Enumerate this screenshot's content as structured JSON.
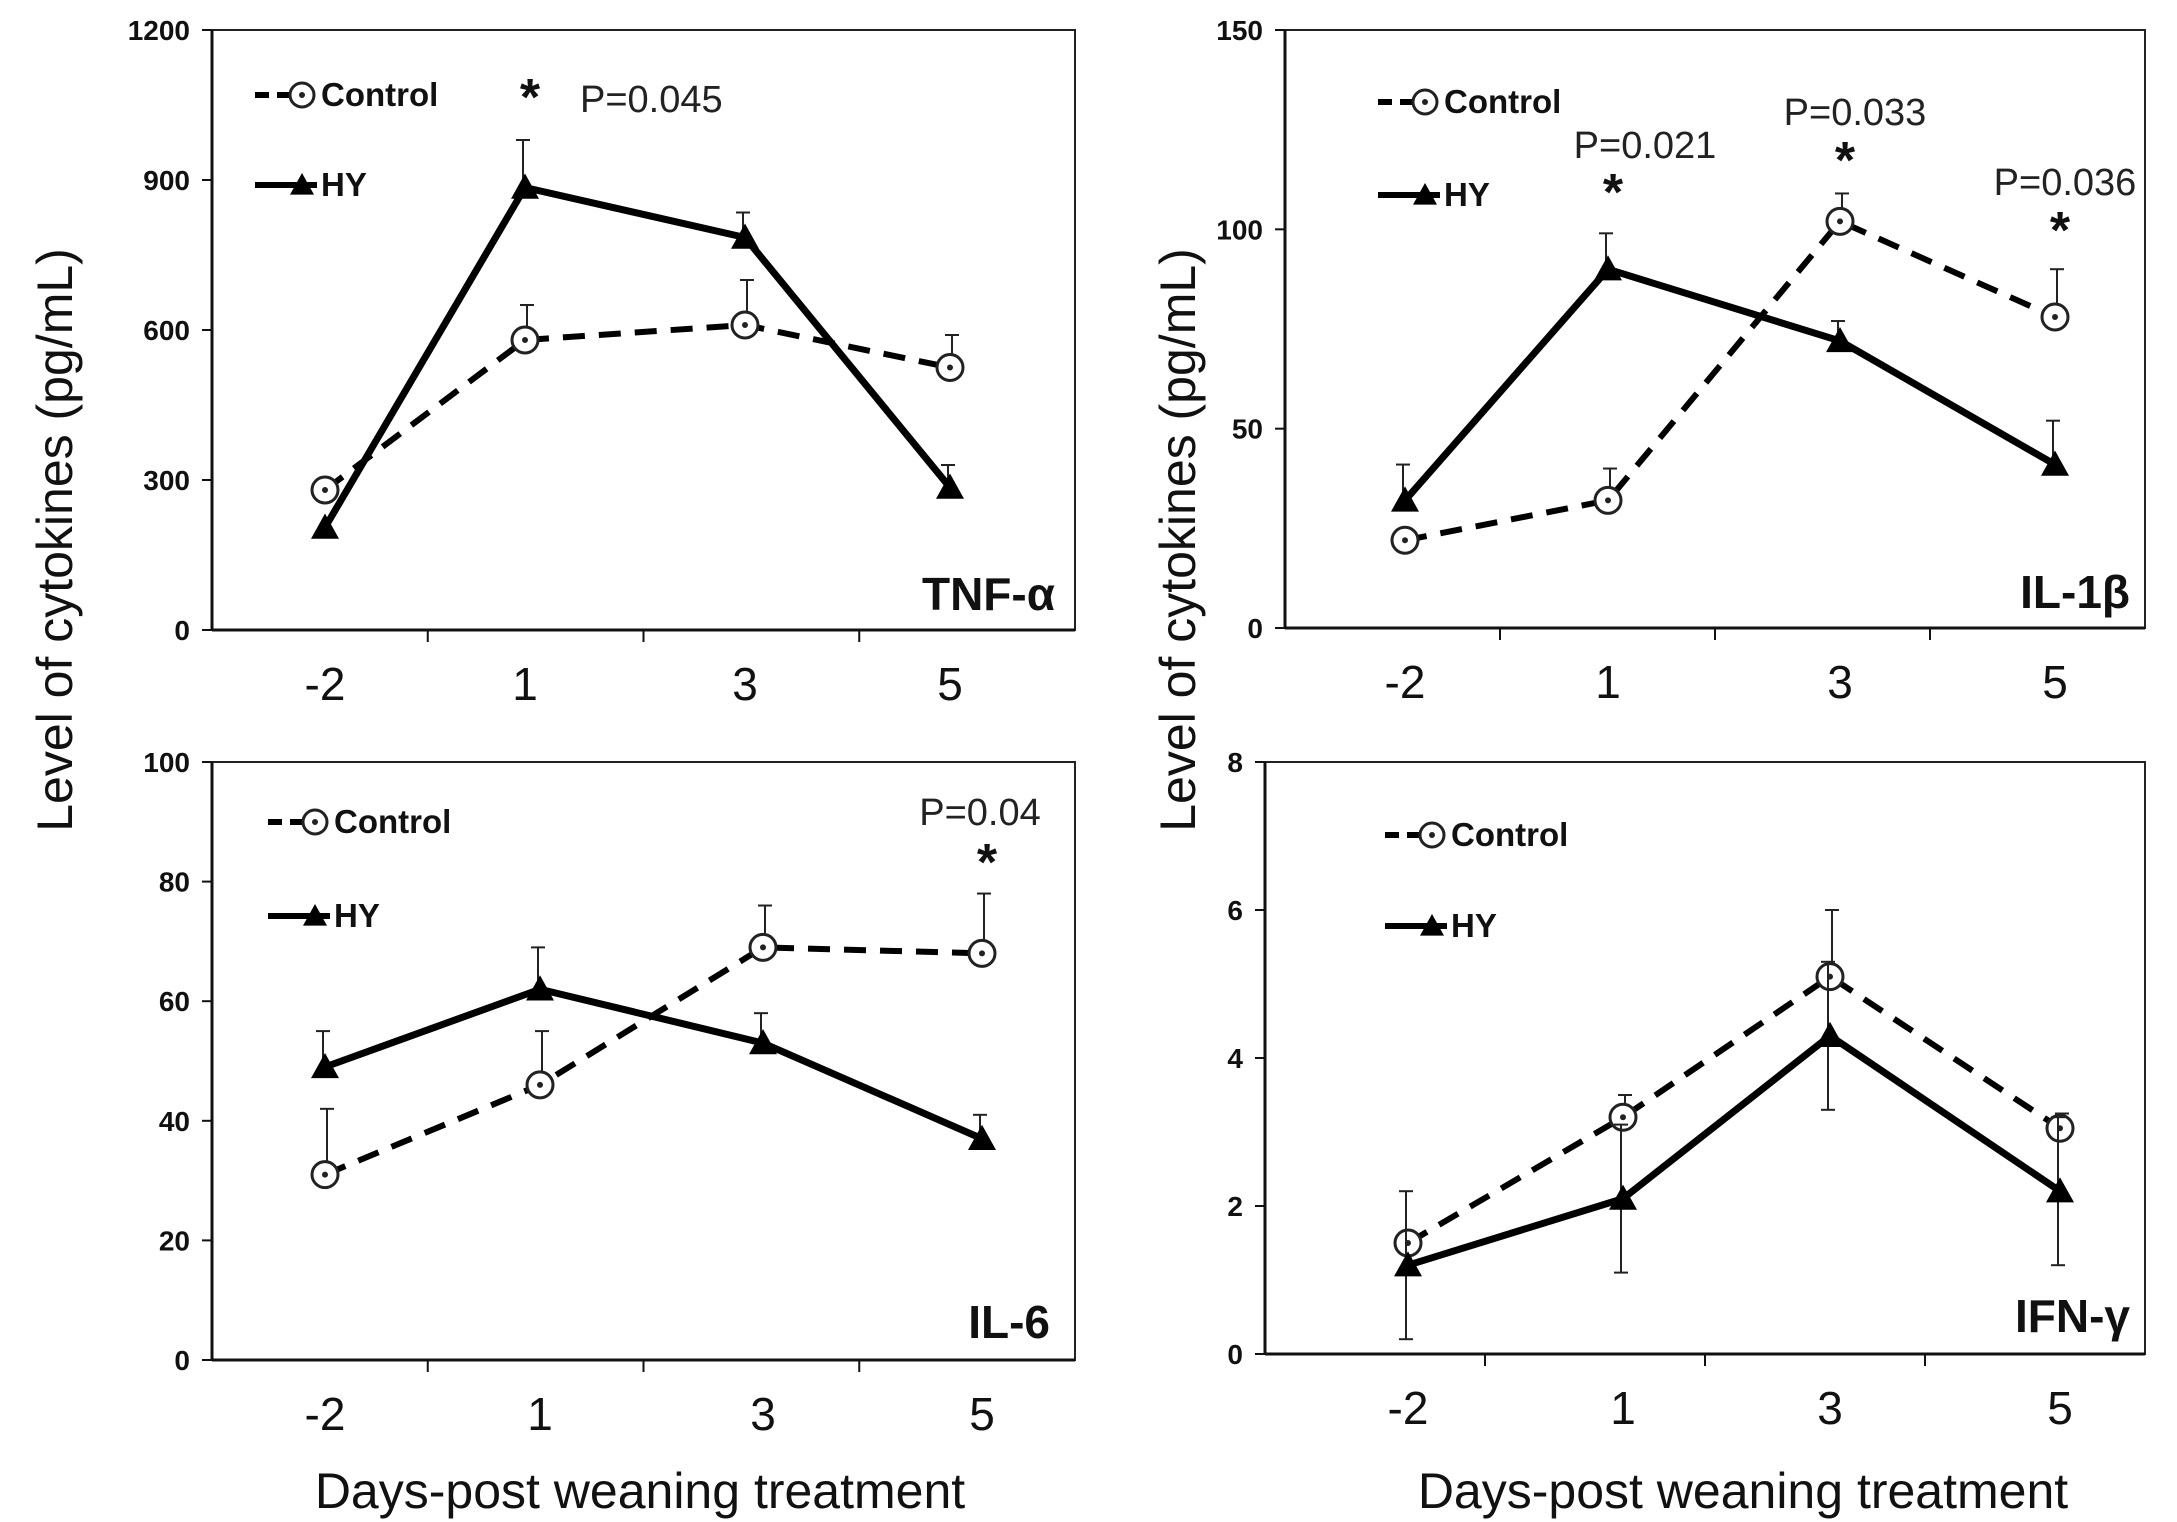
{
  "figure": {
    "y_axis_label": "Level of cytokines (pg/mL)",
    "x_axis_label": "Days-post weaning treatment"
  },
  "chart_data": [
    {
      "type": "line",
      "panel": "TNF-α",
      "categories": [
        "-2",
        "1",
        "3",
        "5"
      ],
      "ylim": [
        0,
        1200
      ],
      "yticks": [
        0,
        300,
        600,
        900,
        1200
      ],
      "legend": [
        "Control",
        "HY"
      ],
      "series": [
        {
          "name": "Control",
          "values": [
            280,
            580,
            610,
            525
          ],
          "errors": [
            0,
            70,
            90,
            65
          ]
        },
        {
          "name": "HY",
          "values": [
            205,
            885,
            785,
            285
          ],
          "errors": [
            0,
            95,
            50,
            45
          ]
        }
      ],
      "annotations": [
        {
          "x": "1",
          "pvalue": "P=0.045",
          "star": "*"
        }
      ]
    },
    {
      "type": "line",
      "panel": "IL-1β",
      "categories": [
        "-2",
        "1",
        "3",
        "5"
      ],
      "ylim": [
        0,
        150
      ],
      "yticks": [
        0,
        50,
        100,
        150
      ],
      "legend": [
        "Control",
        "HY"
      ],
      "series": [
        {
          "name": "Control",
          "values": [
            22,
            32,
            102,
            78
          ],
          "errors": [
            0,
            8,
            7,
            12
          ]
        },
        {
          "name": "HY",
          "values": [
            32,
            90,
            72,
            41
          ],
          "errors": [
            9,
            9,
            5,
            11
          ]
        }
      ],
      "annotations": [
        {
          "x": "1",
          "pvalue": "P=0.021",
          "star": "*"
        },
        {
          "x": "3",
          "pvalue": "P=0.033",
          "star": "*"
        },
        {
          "x": "5",
          "pvalue": "P=0.036",
          "star": "*"
        }
      ]
    },
    {
      "type": "line",
      "panel": "IL-6",
      "categories": [
        "-2",
        "1",
        "3",
        "5"
      ],
      "ylim": [
        0,
        100
      ],
      "yticks": [
        0,
        20,
        40,
        60,
        80,
        100
      ],
      "legend": [
        "Control",
        "HY"
      ],
      "series": [
        {
          "name": "Control",
          "values": [
            31,
            46,
            69,
            68
          ],
          "errors": [
            11,
            9,
            7,
            10
          ]
        },
        {
          "name": "HY",
          "values": [
            49,
            62,
            53,
            37
          ],
          "errors": [
            6,
            7,
            5,
            4
          ]
        }
      ],
      "annotations": [
        {
          "x": "5",
          "pvalue": "P=0.04",
          "star": "*"
        }
      ]
    },
    {
      "type": "line",
      "panel": "IFN-γ",
      "categories": [
        "-2",
        "1",
        "3",
        "5"
      ],
      "ylim": [
        0,
        8
      ],
      "yticks": [
        0,
        2,
        4,
        6,
        8
      ],
      "legend": [
        "Control",
        "HY"
      ],
      "series": [
        {
          "name": "Control",
          "values": [
            1.5,
            3.2,
            5.1,
            3.05
          ],
          "errors": [
            0,
            0.3,
            0.9,
            0.2
          ]
        },
        {
          "name": "HY",
          "values": [
            1.2,
            2.1,
            4.3,
            2.2
          ],
          "errors": [
            1.0,
            1.0,
            1.0,
            1.0
          ]
        }
      ],
      "annotations": []
    }
  ]
}
